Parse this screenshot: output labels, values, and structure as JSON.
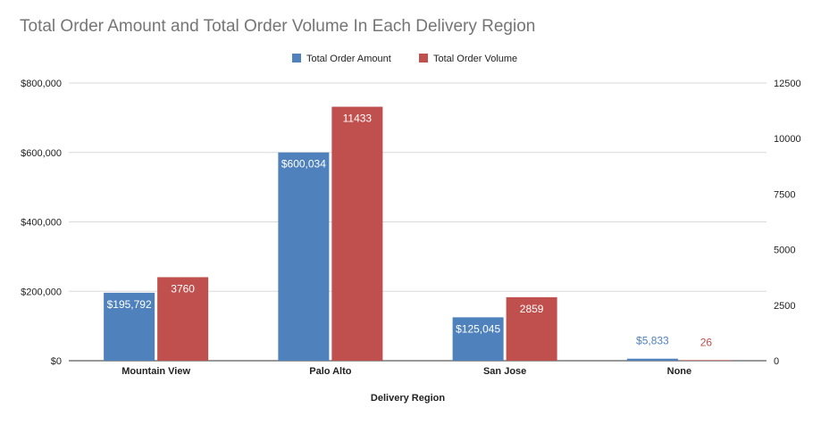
{
  "chart_data": {
    "type": "bar",
    "title": "Total Order Amount and Total Order Volume In Each Delivery Region",
    "xlabel": "Delivery Region",
    "categories": [
      "Mountain View",
      "Palo Alto",
      "San Jose",
      "None"
    ],
    "series": [
      {
        "name": "Total Order Amount",
        "axis": "left",
        "color": "#4f81bd",
        "values": [
          195792,
          600034,
          125045,
          5833
        ],
        "labels": [
          "$195,792",
          "$600,034",
          "$125,045",
          "$5,833"
        ]
      },
      {
        "name": "Total Order Volume",
        "axis": "right",
        "color": "#c0504d",
        "values": [
          3760,
          11433,
          2859,
          26
        ],
        "labels": [
          "3760",
          "11433",
          "2859",
          "26"
        ]
      }
    ],
    "y_left": {
      "ylim": [
        0,
        800000
      ],
      "ticks": [
        0,
        200000,
        400000,
        600000,
        800000
      ],
      "tick_labels": [
        "$0",
        "$200,000",
        "$400,000",
        "$600,000",
        "$800,000"
      ]
    },
    "y_right": {
      "ylim": [
        0,
        12500
      ],
      "ticks": [
        0,
        2500,
        5000,
        7500,
        10000,
        12500
      ],
      "tick_labels": [
        "0",
        "2500",
        "5000",
        "7500",
        "10000",
        "12500"
      ]
    },
    "grid": true,
    "legend_position": "top-center"
  }
}
